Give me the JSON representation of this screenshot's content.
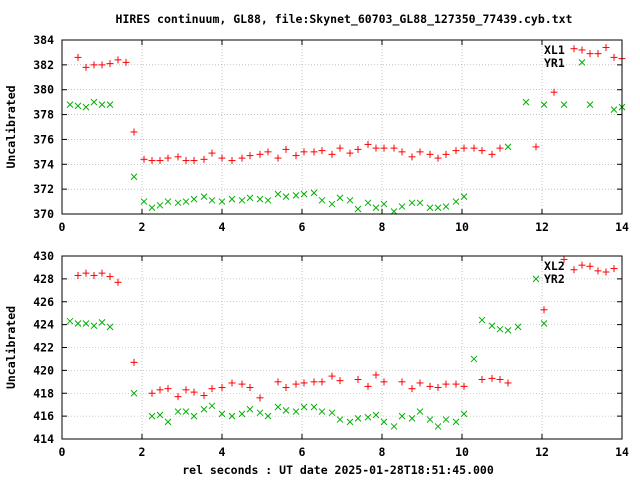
{
  "title": "HIRES continuum, GL88, file:Skynet_60703_GL88_127350_77439.cyb.txt",
  "xlabel": "rel seconds : UT date 2025-01-28T18:51:45.000",
  "colors": {
    "series_red": "#ff0000",
    "series_green": "#00b000",
    "axis": "#000000",
    "grid": "#a0a0a0",
    "background": "#ffffff"
  },
  "chart_data": [
    {
      "type": "scatter",
      "title": "",
      "xlabel": "",
      "ylabel": "Uncalibrated",
      "xlim": [
        0,
        14
      ],
      "ylim": [
        370,
        384
      ],
      "xticks": [
        0,
        2,
        4,
        6,
        8,
        10,
        12,
        14
      ],
      "yticks": [
        370,
        372,
        374,
        376,
        378,
        380,
        382,
        384
      ],
      "show_xtick_labels": true,
      "grid": true,
      "legend": "top-right",
      "x": [
        0.2,
        0.4,
        0.6,
        0.8,
        1.0,
        1.2,
        1.4,
        1.6,
        1.8,
        2.05,
        2.25,
        2.45,
        2.65,
        2.9,
        3.1,
        3.3,
        3.55,
        3.75,
        4.0,
        4.25,
        4.5,
        4.7,
        4.95,
        5.15,
        5.4,
        5.6,
        5.85,
        6.05,
        6.3,
        6.5,
        6.75,
        6.95,
        7.2,
        7.4,
        7.65,
        7.85,
        8.05,
        8.3,
        8.5,
        8.75,
        8.95,
        9.2,
        9.4,
        9.6,
        9.85,
        10.05,
        10.3,
        10.5,
        10.75,
        10.95,
        11.15,
        11.4,
        11.6,
        11.85,
        12.05,
        12.3,
        12.55,
        12.8,
        13.0,
        13.2,
        13.4,
        13.6,
        13.8,
        14.0
      ],
      "series": [
        {
          "name": "XL1",
          "marker": "plus",
          "color": "#ff0000",
          "values": [
            382.6,
            381.8,
            382.0,
            382.0,
            382.1,
            382.4,
            382.2,
            376.6,
            374.4,
            374.3,
            374.3,
            374.5,
            374.6,
            374.3,
            374.3,
            374.4,
            374.9,
            374.5,
            374.3,
            374.5,
            374.7,
            374.8,
            375.0,
            374.5,
            375.2,
            374.7,
            375.0,
            375.0,
            375.1,
            374.8,
            375.3,
            374.9,
            375.2,
            375.6,
            375.3,
            375.3,
            375.3,
            375.0,
            374.6,
            375.0,
            374.8,
            374.5,
            374.8,
            375.1,
            375.3,
            375.3,
            375.1,
            374.8,
            375.3,
            375.4,
            379.8,
            383.3,
            383.2,
            382.9,
            383.4,
            382.9,
            382.6,
            382.5
          ]
        },
        {
          "name": "YR1",
          "marker": "x",
          "color": "#00b000",
          "values": [
            378.8,
            378.7,
            378.6,
            379.0,
            378.8,
            378.8,
            373.0,
            371.0,
            370.5,
            370.7,
            371.0,
            370.9,
            371.0,
            371.2,
            371.4,
            371.1,
            371.0,
            371.2,
            371.1,
            371.3,
            371.2,
            371.1,
            371.6,
            371.4,
            371.5,
            371.6,
            371.7,
            371.1,
            370.8,
            371.3,
            371.1,
            370.4,
            370.9,
            370.5,
            370.8,
            370.2,
            370.6,
            370.9,
            370.9,
            370.5,
            370.5,
            370.6,
            371.0,
            371.4,
            375.4,
            379.0,
            378.8,
            378.8,
            382.2,
            378.8,
            378.4,
            378.6
          ]
        }
      ],
      "series_x_index": [
        [
          1,
          2,
          3,
          4,
          5,
          6,
          7,
          8,
          9,
          10,
          11,
          12,
          13,
          14,
          15,
          16,
          17,
          18,
          19,
          20,
          21,
          22,
          23,
          24,
          25,
          26,
          27,
          28,
          29,
          30,
          31,
          32,
          33,
          34,
          35,
          36,
          37,
          38,
          39,
          40,
          41,
          42,
          43,
          44,
          45,
          46,
          47,
          48,
          49,
          53,
          55,
          57,
          58,
          59,
          61,
          60,
          62,
          63
        ],
        [
          0,
          1,
          2,
          3,
          4,
          5,
          8,
          9,
          10,
          11,
          12,
          13,
          14,
          15,
          16,
          17,
          18,
          19,
          20,
          21,
          22,
          23,
          24,
          25,
          26,
          27,
          28,
          29,
          30,
          31,
          32,
          33,
          34,
          35,
          36,
          37,
          38,
          39,
          40,
          41,
          42,
          43,
          44,
          45,
          50,
          52,
          54,
          56,
          58,
          59,
          62,
          63
        ]
      ]
    },
    {
      "type": "scatter",
      "title": "",
      "xlabel": "",
      "ylabel": "Uncalibrated",
      "xlim": [
        0,
        14
      ],
      "ylim": [
        414,
        430
      ],
      "xticks": [
        0,
        2,
        4,
        6,
        8,
        10,
        12,
        14
      ],
      "yticks": [
        414,
        416,
        418,
        420,
        422,
        424,
        426,
        428,
        430
      ],
      "show_xtick_labels": true,
      "grid": true,
      "legend": "top-right",
      "x": [
        0.2,
        0.4,
        0.6,
        0.8,
        1.0,
        1.2,
        1.4,
        1.6,
        1.8,
        2.05,
        2.25,
        2.45,
        2.65,
        2.9,
        3.1,
        3.3,
        3.55,
        3.75,
        4.0,
        4.25,
        4.5,
        4.7,
        4.95,
        5.15,
        5.4,
        5.6,
        5.85,
        6.05,
        6.3,
        6.5,
        6.75,
        6.95,
        7.2,
        7.4,
        7.65,
        7.85,
        8.05,
        8.3,
        8.5,
        8.75,
        8.95,
        9.2,
        9.4,
        9.6,
        9.85,
        10.05,
        10.3,
        10.5,
        10.75,
        10.95,
        11.15,
        11.4,
        11.6,
        11.85,
        12.05,
        12.3,
        12.55,
        12.8,
        13.0,
        13.2,
        13.4,
        13.6,
        13.8,
        14.0
      ],
      "series": [
        {
          "name": "XL2",
          "marker": "plus",
          "color": "#ff0000",
          "values": [
            428.3,
            428.5,
            428.3,
            428.5,
            428.2,
            427.7,
            420.7,
            418.0,
            418.3,
            418.4,
            417.7,
            418.3,
            418.1,
            417.8,
            418.4,
            418.5,
            418.9,
            418.8,
            418.5,
            417.6,
            419.0,
            418.5,
            418.8,
            418.9,
            419.0,
            419.0,
            419.5,
            419.1,
            419.2,
            418.6,
            419.6,
            419.0,
            419.0,
            418.4,
            418.9,
            418.6,
            418.5,
            418.8,
            418.8,
            418.6,
            419.2,
            419.3,
            419.2,
            418.9,
            425.3,
            429.7,
            428.8,
            429.2,
            429.1,
            428.7,
            428.6,
            428.9
          ]
        },
        {
          "name": "YR2",
          "marker": "x",
          "color": "#00b000",
          "values": [
            424.3,
            424.1,
            424.1,
            423.9,
            424.2,
            423.8,
            418.0,
            416.0,
            416.1,
            415.5,
            416.4,
            416.4,
            416.0,
            416.6,
            416.9,
            416.2,
            416.0,
            416.2,
            416.6,
            416.3,
            416.0,
            416.8,
            416.5,
            416.4,
            416.8,
            416.8,
            416.4,
            416.3,
            415.7,
            415.5,
            415.8,
            415.9,
            416.1,
            415.5,
            415.1,
            416.0,
            415.8,
            416.4,
            415.7,
            415.1,
            415.7,
            415.5,
            416.2,
            421.0,
            424.4,
            423.9,
            423.6,
            423.5,
            423.8,
            428.0,
            424.1
          ]
        }
      ],
      "series_x_index": [
        [
          1,
          2,
          3,
          4,
          5,
          6,
          8,
          10,
          11,
          12,
          13,
          14,
          15,
          16,
          17,
          18,
          19,
          20,
          21,
          22,
          24,
          25,
          26,
          27,
          28,
          29,
          30,
          31,
          33,
          34,
          35,
          36,
          38,
          39,
          40,
          41,
          42,
          43,
          44,
          45,
          47,
          48,
          49,
          50,
          54,
          56,
          57,
          58,
          59,
          60,
          61,
          62
        ],
        [
          0,
          1,
          2,
          3,
          4,
          5,
          8,
          10,
          11,
          12,
          13,
          14,
          15,
          16,
          17,
          18,
          19,
          20,
          21,
          22,
          23,
          24,
          25,
          26,
          27,
          28,
          29,
          30,
          31,
          32,
          33,
          34,
          35,
          36,
          37,
          38,
          39,
          40,
          41,
          42,
          43,
          44,
          45,
          46,
          47,
          48,
          49,
          50,
          51,
          53,
          54
        ]
      ]
    }
  ]
}
